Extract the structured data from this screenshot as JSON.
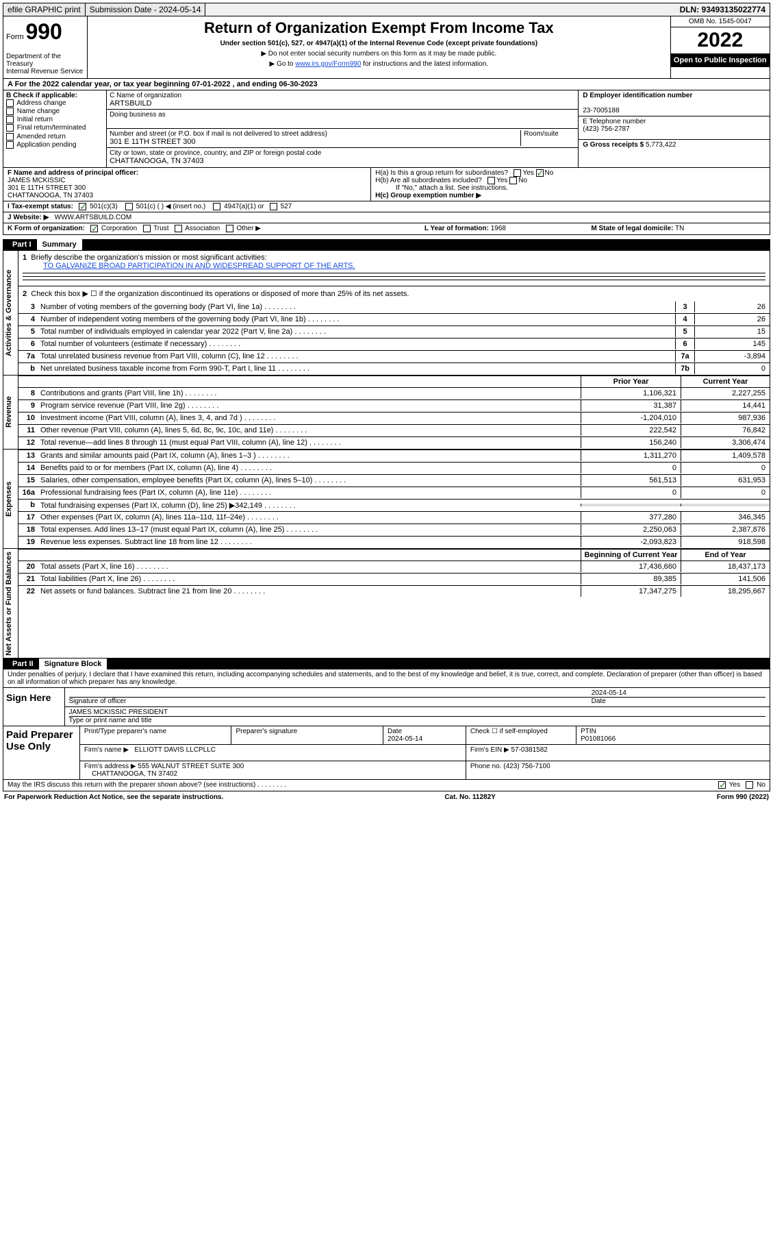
{
  "topbar": {
    "efile": "efile GRAPHIC print",
    "submission": "Submission Date - 2024-05-14",
    "dln": "DLN: 93493135022774"
  },
  "header": {
    "form_label": "Form",
    "form_num": "990",
    "dept": "Department of the Treasury",
    "internal": "Internal Revenue Service",
    "title": "Return of Organization Exempt From Income Tax",
    "sub": "Under section 501(c), 527, or 4947(a)(1) of the Internal Revenue Code (except private foundations)",
    "instr1": "▶ Do not enter social security numbers on this form as it may be made public.",
    "instr2_pre": "▶ Go to ",
    "instr2_link": "www.irs.gov/Form990",
    "instr2_post": " for instructions and the latest information.",
    "omb": "OMB No. 1545-0047",
    "year": "2022",
    "open": "Open to Public Inspection"
  },
  "rowA": "A For the 2022 calendar year, or tax year beginning 07-01-2022   , and ending 06-30-2023",
  "blockB": {
    "label": "B Check if applicable:",
    "items": [
      "Address change",
      "Name change",
      "Initial return",
      "Final return/terminated",
      "Amended return",
      "Application pending"
    ],
    "c_lbl": "C Name of organization",
    "c_name": "ARTSBUILD",
    "dba_lbl": "Doing business as",
    "street_lbl": "Number and street (or P.O. box if mail is not delivered to street address)",
    "room_lbl": "Room/suite",
    "street": "301 E 11TH STREET 300",
    "city_lbl": "City or town, state or province, country, and ZIP or foreign postal code",
    "city": "CHATTANOOGA, TN  37403",
    "d_lbl": "D Employer identification number",
    "d_ein": "23-7005188",
    "e_lbl": "E Telephone number",
    "e_phone": "(423) 756-2787",
    "g_lbl": "G Gross receipts $",
    "g_amt": "5,773,422"
  },
  "fgh": {
    "f_lbl": "F Name and address of principal officer:",
    "f_name": "JAMES MCKISSIC",
    "f_addr1": "301 E 11TH STREET 300",
    "f_addr2": "CHATTANOOGA, TN  37403",
    "ha": "H(a)  Is this a group return for subordinates?",
    "hb": "H(b)  Are all subordinates included?",
    "hb_note": "If \"No,\" attach a list. See instructions.",
    "hc": "H(c)  Group exemption number ▶",
    "yes": "Yes",
    "no": "No"
  },
  "rowI": {
    "lbl": "I   Tax-exempt status:",
    "opt1": "501(c)(3)",
    "opt2": "501(c) (  ) ◀ (insert no.)",
    "opt3": "4947(a)(1) or",
    "opt4": "527"
  },
  "rowJ": {
    "lbl": "J   Website: ▶",
    "val": "WWW.ARTSBUILD.COM"
  },
  "rowK": {
    "k_lbl": "K Form of organization:",
    "opts": [
      "Corporation",
      "Trust",
      "Association",
      "Other ▶"
    ],
    "l_lbl": "L Year of formation:",
    "l_val": "1968",
    "m_lbl": "M State of legal domicile:",
    "m_val": "TN"
  },
  "part1_hdr": {
    "lbl": "Part I",
    "txt": "Summary"
  },
  "summary": {
    "q1": "Briefly describe the organization's mission or most significant activities:",
    "mission": "TO GALVANIZE BROAD PARTICIPATION IN AND WIDESPREAD SUPPORT OF THE ARTS.",
    "q2": "Check this box ▶ ☐  if the organization discontinued its operations or disposed of more than 25% of its net assets.",
    "rows_gov": [
      {
        "n": "3",
        "d": "Number of voting members of the governing body (Part VI, line 1a)",
        "b": "3",
        "v": "26"
      },
      {
        "n": "4",
        "d": "Number of independent voting members of the governing body (Part VI, line 1b)",
        "b": "4",
        "v": "26"
      },
      {
        "n": "5",
        "d": "Total number of individuals employed in calendar year 2022 (Part V, line 2a)",
        "b": "5",
        "v": "15"
      },
      {
        "n": "6",
        "d": "Total number of volunteers (estimate if necessary)",
        "b": "6",
        "v": "145"
      },
      {
        "n": "7a",
        "d": "Total unrelated business revenue from Part VIII, column (C), line 12",
        "b": "7a",
        "v": "-3,894"
      },
      {
        "n": "b",
        "d": "Net unrelated business taxable income from Form 990-T, Part I, line 11",
        "b": "7b",
        "v": "0"
      }
    ],
    "col_prior": "Prior Year",
    "col_curr": "Current Year",
    "rows_rev": [
      {
        "n": "8",
        "d": "Contributions and grants (Part VIII, line 1h)",
        "p": "1,106,321",
        "c": "2,227,255"
      },
      {
        "n": "9",
        "d": "Program service revenue (Part VIII, line 2g)",
        "p": "31,387",
        "c": "14,441"
      },
      {
        "n": "10",
        "d": "Investment income (Part VIII, column (A), lines 3, 4, and 7d )",
        "p": "-1,204,010",
        "c": "987,936"
      },
      {
        "n": "11",
        "d": "Other revenue (Part VIII, column (A), lines 5, 6d, 8c, 9c, 10c, and 11e)",
        "p": "222,542",
        "c": "76,842"
      },
      {
        "n": "12",
        "d": "Total revenue—add lines 8 through 11 (must equal Part VIII, column (A), line 12)",
        "p": "156,240",
        "c": "3,306,474"
      }
    ],
    "rows_exp": [
      {
        "n": "13",
        "d": "Grants and similar amounts paid (Part IX, column (A), lines 1–3 )",
        "p": "1,311,270",
        "c": "1,409,578"
      },
      {
        "n": "14",
        "d": "Benefits paid to or for members (Part IX, column (A), line 4)",
        "p": "0",
        "c": "0"
      },
      {
        "n": "15",
        "d": "Salaries, other compensation, employee benefits (Part IX, column (A), lines 5–10)",
        "p": "561,513",
        "c": "631,953"
      },
      {
        "n": "16a",
        "d": "Professional fundraising fees (Part IX, column (A), line 11e)",
        "p": "0",
        "c": "0"
      },
      {
        "n": "b",
        "d": "Total fundraising expenses (Part IX, column (D), line 25) ▶342,149",
        "p": "",
        "c": ""
      },
      {
        "n": "17",
        "d": "Other expenses (Part IX, column (A), lines 11a–11d, 11f–24e)",
        "p": "377,280",
        "c": "346,345"
      },
      {
        "n": "18",
        "d": "Total expenses. Add lines 13–17 (must equal Part IX, column (A), line 25)",
        "p": "2,250,063",
        "c": "2,387,876"
      },
      {
        "n": "19",
        "d": "Revenue less expenses. Subtract line 18 from line 12",
        "p": "-2,093,823",
        "c": "918,598"
      }
    ],
    "col_beg": "Beginning of Current Year",
    "col_end": "End of Year",
    "rows_net": [
      {
        "n": "20",
        "d": "Total assets (Part X, line 16)",
        "p": "17,436,660",
        "c": "18,437,173"
      },
      {
        "n": "21",
        "d": "Total liabilities (Part X, line 26)",
        "p": "89,385",
        "c": "141,506"
      },
      {
        "n": "22",
        "d": "Net assets or fund balances. Subtract line 21 from line 20",
        "p": "17,347,275",
        "c": "18,295,667"
      }
    ],
    "vtabs": {
      "gov": "Activities & Governance",
      "rev": "Revenue",
      "exp": "Expenses",
      "net": "Net Assets or Fund Balances"
    }
  },
  "part2_hdr": {
    "lbl": "Part II",
    "txt": "Signature Block"
  },
  "sig": {
    "declare": "Under penalties of perjury, I declare that I have examined this return, including accompanying schedules and statements, and to the best of my knowledge and belief, it is true, correct, and complete. Declaration of preparer (other than officer) is based on all information of which preparer has any knowledge.",
    "sign_here": "Sign Here",
    "sig_officer": "Signature of officer",
    "date_lbl": "Date",
    "date": "2024-05-14",
    "name": "JAMES MCKISSIC  PRESIDENT",
    "name_lbl": "Type or print name and title",
    "paid": "Paid Preparer Use Only",
    "prep_name_lbl": "Print/Type preparer's name",
    "prep_sig_lbl": "Preparer's signature",
    "prep_date": "2024-05-14",
    "self_emp": "Check ☐ if self-employed",
    "ptin_lbl": "PTIN",
    "ptin": "P01081066",
    "firm_lbl": "Firm's name   ▶",
    "firm": "ELLIOTT DAVIS LLCPLLC",
    "firm_ein_lbl": "Firm's EIN ▶",
    "firm_ein": "57-0381582",
    "firm_addr_lbl": "Firm's address ▶",
    "firm_addr": "555 WALNUT STREET SUITE 300",
    "firm_city": "CHATTANOOGA, TN  37402",
    "firm_phone_lbl": "Phone no.",
    "firm_phone": "(423) 756-7100",
    "may_discuss": "May the IRS discuss this return with the preparer shown above? (see instructions)"
  },
  "footer": {
    "pra": "For Paperwork Reduction Act Notice, see the separate instructions.",
    "cat": "Cat. No. 11282Y",
    "form": "Form 990 (2022)"
  },
  "colors": {
    "link": "#1a4bd8",
    "check": "#2b6f2b",
    "black": "#000000",
    "bg": "#ffffff"
  }
}
